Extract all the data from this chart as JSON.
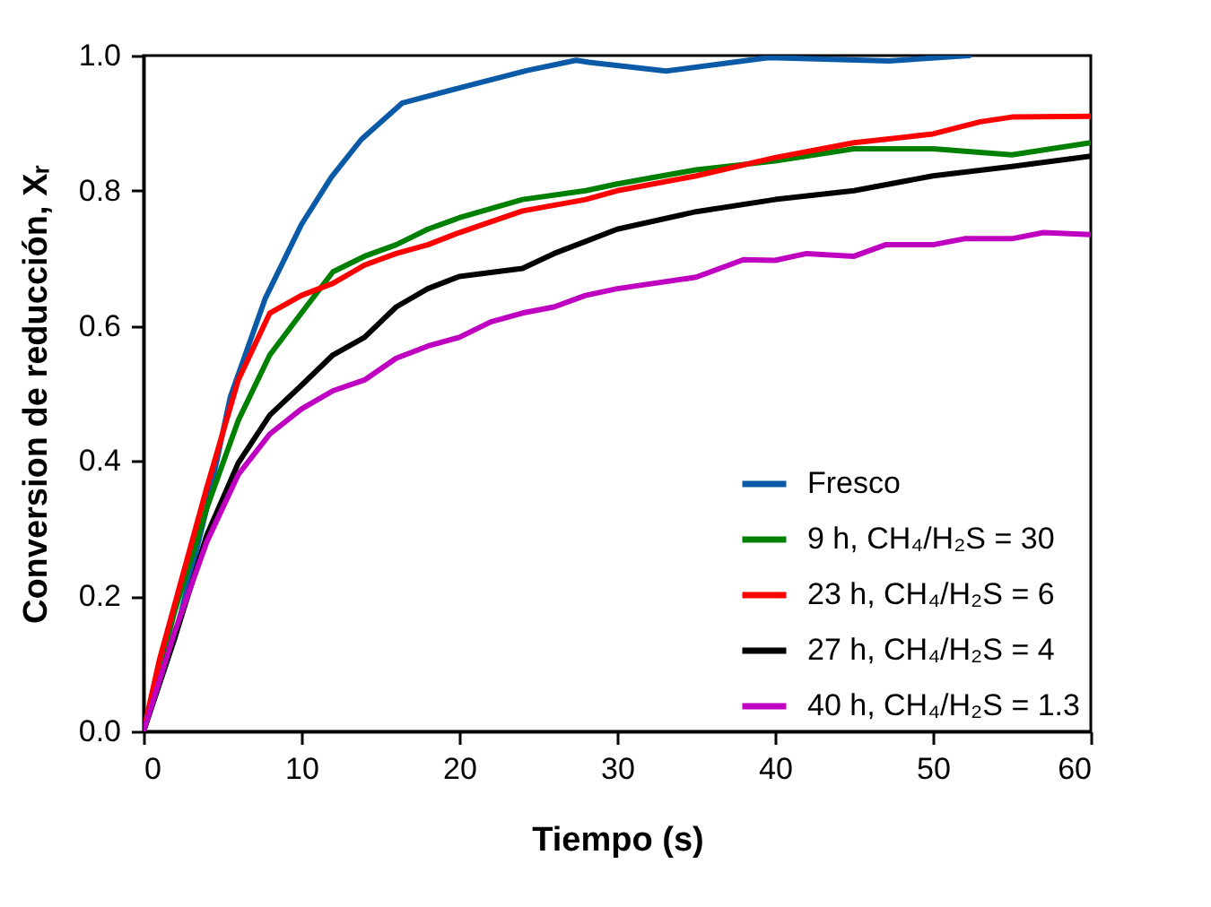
{
  "chart_data": {
    "type": "line",
    "xlabel": "Tiempo (s)",
    "ylabel": "Conversion de reducción, Xᵣ",
    "xlim": [
      0,
      60
    ],
    "xticks": [
      0,
      10,
      20,
      30,
      40,
      50,
      60
    ],
    "ylim": [
      0,
      1
    ],
    "yticks": [
      {
        "value": 0,
        "label": "0.0"
      },
      {
        "value": 0.2,
        "label": "0.2"
      },
      {
        "value": 0.4,
        "label": "0.4"
      },
      {
        "value": 0.6,
        "label": "0.6"
      },
      {
        "value": 0.8,
        "label": "0.8"
      },
      {
        "value": 1,
        "label": "1.0"
      }
    ],
    "grid": false,
    "legend": "bottom right",
    "marker": "none",
    "line_style": "solid",
    "series": [
      {
        "name": "Fresco",
        "color": "#0a5aa8",
        "x": [
          0,
          2,
          4,
          5.5,
          7.7,
          10,
          11.9,
          13.8,
          16.4,
          20,
          24.3,
          27.4,
          28.2,
          33.1,
          39.6,
          47.2,
          52.3
        ],
        "values": [
          0,
          0.14,
          0.33,
          0.495,
          0.64,
          0.75,
          0.82,
          0.876,
          0.93,
          0.952,
          0.978,
          0.993,
          0.99,
          0.977,
          0.997,
          0.992,
          1.0
        ]
      },
      {
        "name": "9 h, CH₄/H₂S = 30",
        "color": "#008000",
        "x": [
          0,
          2,
          4,
          6,
          8,
          10,
          12,
          14,
          16,
          18,
          20,
          24,
          28,
          30,
          35,
          40,
          45,
          50,
          55,
          60
        ],
        "values": [
          0,
          0.18,
          0.33,
          0.46,
          0.557,
          0.619,
          0.68,
          0.703,
          0.72,
          0.743,
          0.76,
          0.787,
          0.8,
          0.81,
          0.831,
          0.844,
          0.862,
          0.862,
          0.853,
          0.871
        ]
      },
      {
        "name": "23 h, CH₄/H₂S = 6",
        "color": "#ff0000",
        "x": [
          0,
          1,
          2,
          4,
          6,
          8,
          10,
          12,
          14,
          16,
          18,
          20,
          24,
          28,
          30,
          35,
          40,
          45,
          50,
          53,
          55,
          60
        ],
        "values": [
          0,
          0.105,
          0.19,
          0.36,
          0.52,
          0.619,
          0.645,
          0.663,
          0.69,
          0.707,
          0.72,
          0.738,
          0.77,
          0.787,
          0.8,
          0.822,
          0.849,
          0.871,
          0.884,
          0.902,
          0.909,
          0.91
        ]
      },
      {
        "name": "27 h, CH₄/H₂S = 4",
        "color": "#000000",
        "x": [
          0,
          2,
          4,
          6,
          8,
          10,
          12,
          14,
          16,
          18,
          20,
          24,
          26,
          28,
          30,
          35,
          40,
          45,
          50,
          55,
          60
        ],
        "values": [
          0,
          0.14,
          0.29,
          0.397,
          0.468,
          0.512,
          0.557,
          0.583,
          0.628,
          0.655,
          0.673,
          0.685,
          0.707,
          0.725,
          0.743,
          0.769,
          0.787,
          0.8,
          0.822,
          0.836,
          0.851
        ]
      },
      {
        "name": "40 h, CH₄/H₂S = 1.3",
        "color": "#c000c0",
        "x": [
          0,
          2,
          4,
          6,
          8,
          10,
          12,
          14,
          16,
          18,
          20,
          22,
          24,
          26,
          28,
          30,
          35,
          38,
          40,
          42,
          45,
          47,
          50,
          52,
          55,
          57,
          60
        ],
        "values": [
          0,
          0.149,
          0.28,
          0.38,
          0.44,
          0.477,
          0.504,
          0.52,
          0.552,
          0.57,
          0.583,
          0.606,
          0.619,
          0.628,
          0.645,
          0.655,
          0.672,
          0.698,
          0.697,
          0.707,
          0.703,
          0.72,
          0.72,
          0.729,
          0.729,
          0.738,
          0.735
        ]
      }
    ]
  }
}
